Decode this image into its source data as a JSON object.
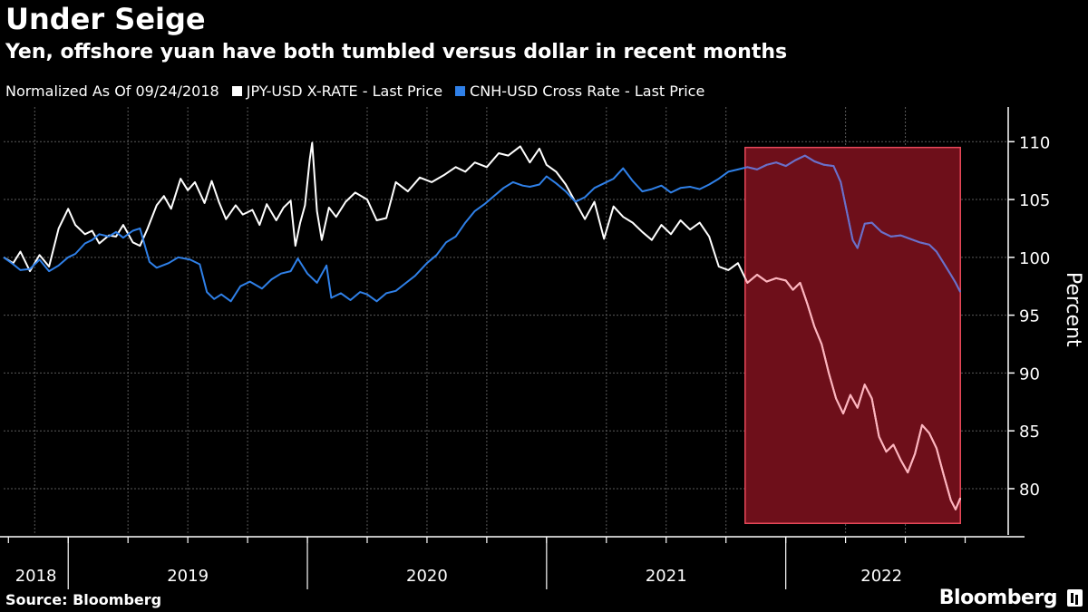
{
  "header": {
    "title": "Under Seige",
    "subtitle": "Yen, offshore yuan have both tumbled versus dollar in recent months"
  },
  "legend": {
    "note": "Normalized As Of 09/24/2018",
    "items": [
      {
        "label": "JPY-USD X-RATE - Last Price",
        "color": "#ffffff"
      },
      {
        "label": "CNH-USD Cross Rate - Last Price",
        "color": "#2f80e8"
      }
    ]
  },
  "footer": {
    "source": "Source: Bloomberg",
    "brand": "Bloomberg"
  },
  "colors": {
    "background": "#000000",
    "grid": "#5a5a5a",
    "highlight_fill": "#6e0f1a",
    "highlight_border": "#e8485a"
  },
  "chart_data": {
    "type": "line",
    "title": "Under Seige",
    "subtitle": "Yen, offshore yuan have both tumbled versus dollar in recent months",
    "xlabel": "",
    "ylabel": "Percent",
    "x_unit": "year (decimal)",
    "xlim": [
      2018.73,
      2022.93
    ],
    "ylim": [
      76,
      113
    ],
    "yticks": [
      80,
      85,
      90,
      95,
      100,
      105,
      110
    ],
    "xticks": [
      {
        "label": "2018",
        "center": 2018.865
      },
      {
        "label": "2019",
        "center": 2019.5
      },
      {
        "label": "2020",
        "center": 2020.5
      },
      {
        "label": "2021",
        "center": 2021.5
      },
      {
        "label": "2022",
        "center": 2022.4
      }
    ],
    "x_separators": [
      2019.0,
      2020.0,
      2021.0,
      2022.0
    ],
    "gridlines_y": true,
    "gridlines_x": true,
    "highlight_region": {
      "x_start": 2021.83,
      "x_end": 2022.73,
      "y_start": 77,
      "y_end": 109.5
    },
    "series": [
      {
        "name": "JPY-USD X-RATE - Last Price",
        "color": "#ffffff",
        "points": [
          [
            2018.73,
            100.0
          ],
          [
            2018.77,
            99.5
          ],
          [
            2018.8,
            100.5
          ],
          [
            2018.84,
            98.8
          ],
          [
            2018.88,
            100.2
          ],
          [
            2018.92,
            99.2
          ],
          [
            2018.96,
            102.5
          ],
          [
            2019.0,
            104.2
          ],
          [
            2019.03,
            102.8
          ],
          [
            2019.07,
            102.0
          ],
          [
            2019.1,
            102.3
          ],
          [
            2019.13,
            101.2
          ],
          [
            2019.17,
            101.9
          ],
          [
            2019.2,
            101.8
          ],
          [
            2019.23,
            102.8
          ],
          [
            2019.27,
            101.3
          ],
          [
            2019.3,
            101.0
          ],
          [
            2019.33,
            102.4
          ],
          [
            2019.37,
            104.5
          ],
          [
            2019.4,
            105.3
          ],
          [
            2019.43,
            104.2
          ],
          [
            2019.47,
            106.8
          ],
          [
            2019.5,
            105.8
          ],
          [
            2019.53,
            106.5
          ],
          [
            2019.57,
            104.7
          ],
          [
            2019.6,
            106.6
          ],
          [
            2019.63,
            104.8
          ],
          [
            2019.66,
            103.3
          ],
          [
            2019.7,
            104.5
          ],
          [
            2019.73,
            103.7
          ],
          [
            2019.77,
            104.1
          ],
          [
            2019.8,
            102.8
          ],
          [
            2019.83,
            104.6
          ],
          [
            2019.87,
            103.2
          ],
          [
            2019.9,
            104.3
          ],
          [
            2019.93,
            104.9
          ],
          [
            2019.95,
            101.0
          ],
          [
            2019.97,
            103.0
          ],
          [
            2019.99,
            104.5
          ],
          [
            2020.01,
            108.5
          ],
          [
            2020.02,
            109.9
          ],
          [
            2020.04,
            104.0
          ],
          [
            2020.06,
            101.5
          ],
          [
            2020.09,
            104.3
          ],
          [
            2020.12,
            103.5
          ],
          [
            2020.16,
            104.8
          ],
          [
            2020.2,
            105.6
          ],
          [
            2020.25,
            105.0
          ],
          [
            2020.29,
            103.2
          ],
          [
            2020.33,
            103.4
          ],
          [
            2020.37,
            106.5
          ],
          [
            2020.42,
            105.7
          ],
          [
            2020.47,
            106.9
          ],
          [
            2020.52,
            106.5
          ],
          [
            2020.57,
            107.1
          ],
          [
            2020.62,
            107.8
          ],
          [
            2020.66,
            107.4
          ],
          [
            2020.7,
            108.2
          ],
          [
            2020.75,
            107.8
          ],
          [
            2020.8,
            109.0
          ],
          [
            2020.84,
            108.8
          ],
          [
            2020.89,
            109.6
          ],
          [
            2020.93,
            108.2
          ],
          [
            2020.97,
            109.4
          ],
          [
            2021.0,
            108.0
          ],
          [
            2021.04,
            107.4
          ],
          [
            2021.08,
            106.3
          ],
          [
            2021.12,
            104.8
          ],
          [
            2021.16,
            103.3
          ],
          [
            2021.2,
            104.8
          ],
          [
            2021.24,
            101.6
          ],
          [
            2021.28,
            104.4
          ],
          [
            2021.32,
            103.5
          ],
          [
            2021.36,
            103.0
          ],
          [
            2021.4,
            102.2
          ],
          [
            2021.44,
            101.5
          ],
          [
            2021.48,
            102.8
          ],
          [
            2021.52,
            102.0
          ],
          [
            2021.56,
            103.2
          ],
          [
            2021.6,
            102.4
          ],
          [
            2021.64,
            103.0
          ],
          [
            2021.68,
            101.8
          ],
          [
            2021.72,
            99.2
          ],
          [
            2021.76,
            98.9
          ],
          [
            2021.8,
            99.5
          ],
          [
            2021.84,
            97.8
          ],
          [
            2021.88,
            98.5
          ],
          [
            2021.92,
            97.9
          ],
          [
            2021.96,
            98.2
          ],
          [
            2022.0,
            98.0
          ],
          [
            2022.03,
            97.2
          ],
          [
            2022.06,
            97.8
          ],
          [
            2022.09,
            96.0
          ],
          [
            2022.12,
            94.0
          ],
          [
            2022.15,
            92.5
          ],
          [
            2022.18,
            90.0
          ],
          [
            2022.21,
            87.8
          ],
          [
            2022.24,
            86.5
          ],
          [
            2022.27,
            88.1
          ],
          [
            2022.3,
            87.0
          ],
          [
            2022.33,
            89.0
          ],
          [
            2022.36,
            87.8
          ],
          [
            2022.39,
            84.5
          ],
          [
            2022.42,
            83.2
          ],
          [
            2022.45,
            83.8
          ],
          [
            2022.48,
            82.5
          ],
          [
            2022.51,
            81.4
          ],
          [
            2022.54,
            83.0
          ],
          [
            2022.57,
            85.5
          ],
          [
            2022.6,
            84.8
          ],
          [
            2022.63,
            83.5
          ],
          [
            2022.66,
            81.2
          ],
          [
            2022.69,
            79.0
          ],
          [
            2022.71,
            78.2
          ],
          [
            2022.73,
            79.2
          ]
        ]
      },
      {
        "name": "CNH-USD Cross Rate - Last Price",
        "color": "#2f80e8",
        "points": [
          [
            2018.73,
            100.0
          ],
          [
            2018.77,
            99.4
          ],
          [
            2018.8,
            98.9
          ],
          [
            2018.84,
            99.0
          ],
          [
            2018.88,
            99.8
          ],
          [
            2018.92,
            98.8
          ],
          [
            2018.96,
            99.3
          ],
          [
            2019.0,
            100.0
          ],
          [
            2019.03,
            100.3
          ],
          [
            2019.07,
            101.2
          ],
          [
            2019.1,
            101.5
          ],
          [
            2019.13,
            102.0
          ],
          [
            2019.17,
            101.8
          ],
          [
            2019.2,
            102.2
          ],
          [
            2019.23,
            101.7
          ],
          [
            2019.27,
            102.3
          ],
          [
            2019.3,
            102.5
          ],
          [
            2019.34,
            99.6
          ],
          [
            2019.37,
            99.1
          ],
          [
            2019.42,
            99.5
          ],
          [
            2019.46,
            100.0
          ],
          [
            2019.51,
            99.8
          ],
          [
            2019.55,
            99.4
          ],
          [
            2019.58,
            97.0
          ],
          [
            2019.61,
            96.4
          ],
          [
            2019.64,
            96.8
          ],
          [
            2019.68,
            96.2
          ],
          [
            2019.72,
            97.5
          ],
          [
            2019.76,
            97.9
          ],
          [
            2019.81,
            97.3
          ],
          [
            2019.85,
            98.1
          ],
          [
            2019.89,
            98.6
          ],
          [
            2019.93,
            98.8
          ],
          [
            2019.96,
            99.9
          ],
          [
            2020.0,
            98.6
          ],
          [
            2020.04,
            97.8
          ],
          [
            2020.08,
            99.3
          ],
          [
            2020.1,
            96.5
          ],
          [
            2020.14,
            96.9
          ],
          [
            2020.18,
            96.3
          ],
          [
            2020.22,
            97.0
          ],
          [
            2020.25,
            96.8
          ],
          [
            2020.29,
            96.2
          ],
          [
            2020.33,
            96.9
          ],
          [
            2020.37,
            97.1
          ],
          [
            2020.4,
            97.6
          ],
          [
            2020.45,
            98.4
          ],
          [
            2020.5,
            99.5
          ],
          [
            2020.54,
            100.2
          ],
          [
            2020.58,
            101.3
          ],
          [
            2020.62,
            101.8
          ],
          [
            2020.66,
            103.0
          ],
          [
            2020.7,
            104.0
          ],
          [
            2020.74,
            104.6
          ],
          [
            2020.78,
            105.3
          ],
          [
            2020.82,
            106.0
          ],
          [
            2020.86,
            106.5
          ],
          [
            2020.9,
            106.2
          ],
          [
            2020.93,
            106.1
          ],
          [
            2020.97,
            106.3
          ],
          [
            2021.0,
            107.0
          ],
          [
            2021.04,
            106.4
          ],
          [
            2021.08,
            105.7
          ],
          [
            2021.12,
            104.8
          ],
          [
            2021.16,
            105.2
          ],
          [
            2021.2,
            106.0
          ],
          [
            2021.24,
            106.4
          ],
          [
            2021.28,
            106.8
          ],
          [
            2021.32,
            107.7
          ],
          [
            2021.36,
            106.6
          ],
          [
            2021.4,
            105.7
          ],
          [
            2021.44,
            105.9
          ],
          [
            2021.48,
            106.2
          ],
          [
            2021.52,
            105.6
          ],
          [
            2021.56,
            106.0
          ],
          [
            2021.6,
            106.1
          ],
          [
            2021.64,
            105.9
          ],
          [
            2021.68,
            106.3
          ],
          [
            2021.72,
            106.8
          ],
          [
            2021.76,
            107.4
          ],
          [
            2021.8,
            107.6
          ],
          [
            2021.84,
            107.8
          ],
          [
            2021.88,
            107.6
          ],
          [
            2021.92,
            108.0
          ],
          [
            2021.96,
            108.2
          ],
          [
            2022.0,
            107.9
          ],
          [
            2022.04,
            108.4
          ],
          [
            2022.08,
            108.8
          ],
          [
            2022.12,
            108.3
          ],
          [
            2022.16,
            108.0
          ],
          [
            2022.2,
            107.9
          ],
          [
            2022.23,
            106.5
          ],
          [
            2022.26,
            103.5
          ],
          [
            2022.28,
            101.5
          ],
          [
            2022.3,
            100.8
          ],
          [
            2022.33,
            102.9
          ],
          [
            2022.36,
            103.0
          ],
          [
            2022.4,
            102.2
          ],
          [
            2022.44,
            101.8
          ],
          [
            2022.48,
            101.9
          ],
          [
            2022.52,
            101.6
          ],
          [
            2022.56,
            101.3
          ],
          [
            2022.6,
            101.1
          ],
          [
            2022.63,
            100.5
          ],
          [
            2022.66,
            99.5
          ],
          [
            2022.69,
            98.5
          ],
          [
            2022.71,
            97.8
          ],
          [
            2022.73,
            97.0
          ]
        ]
      }
    ]
  }
}
